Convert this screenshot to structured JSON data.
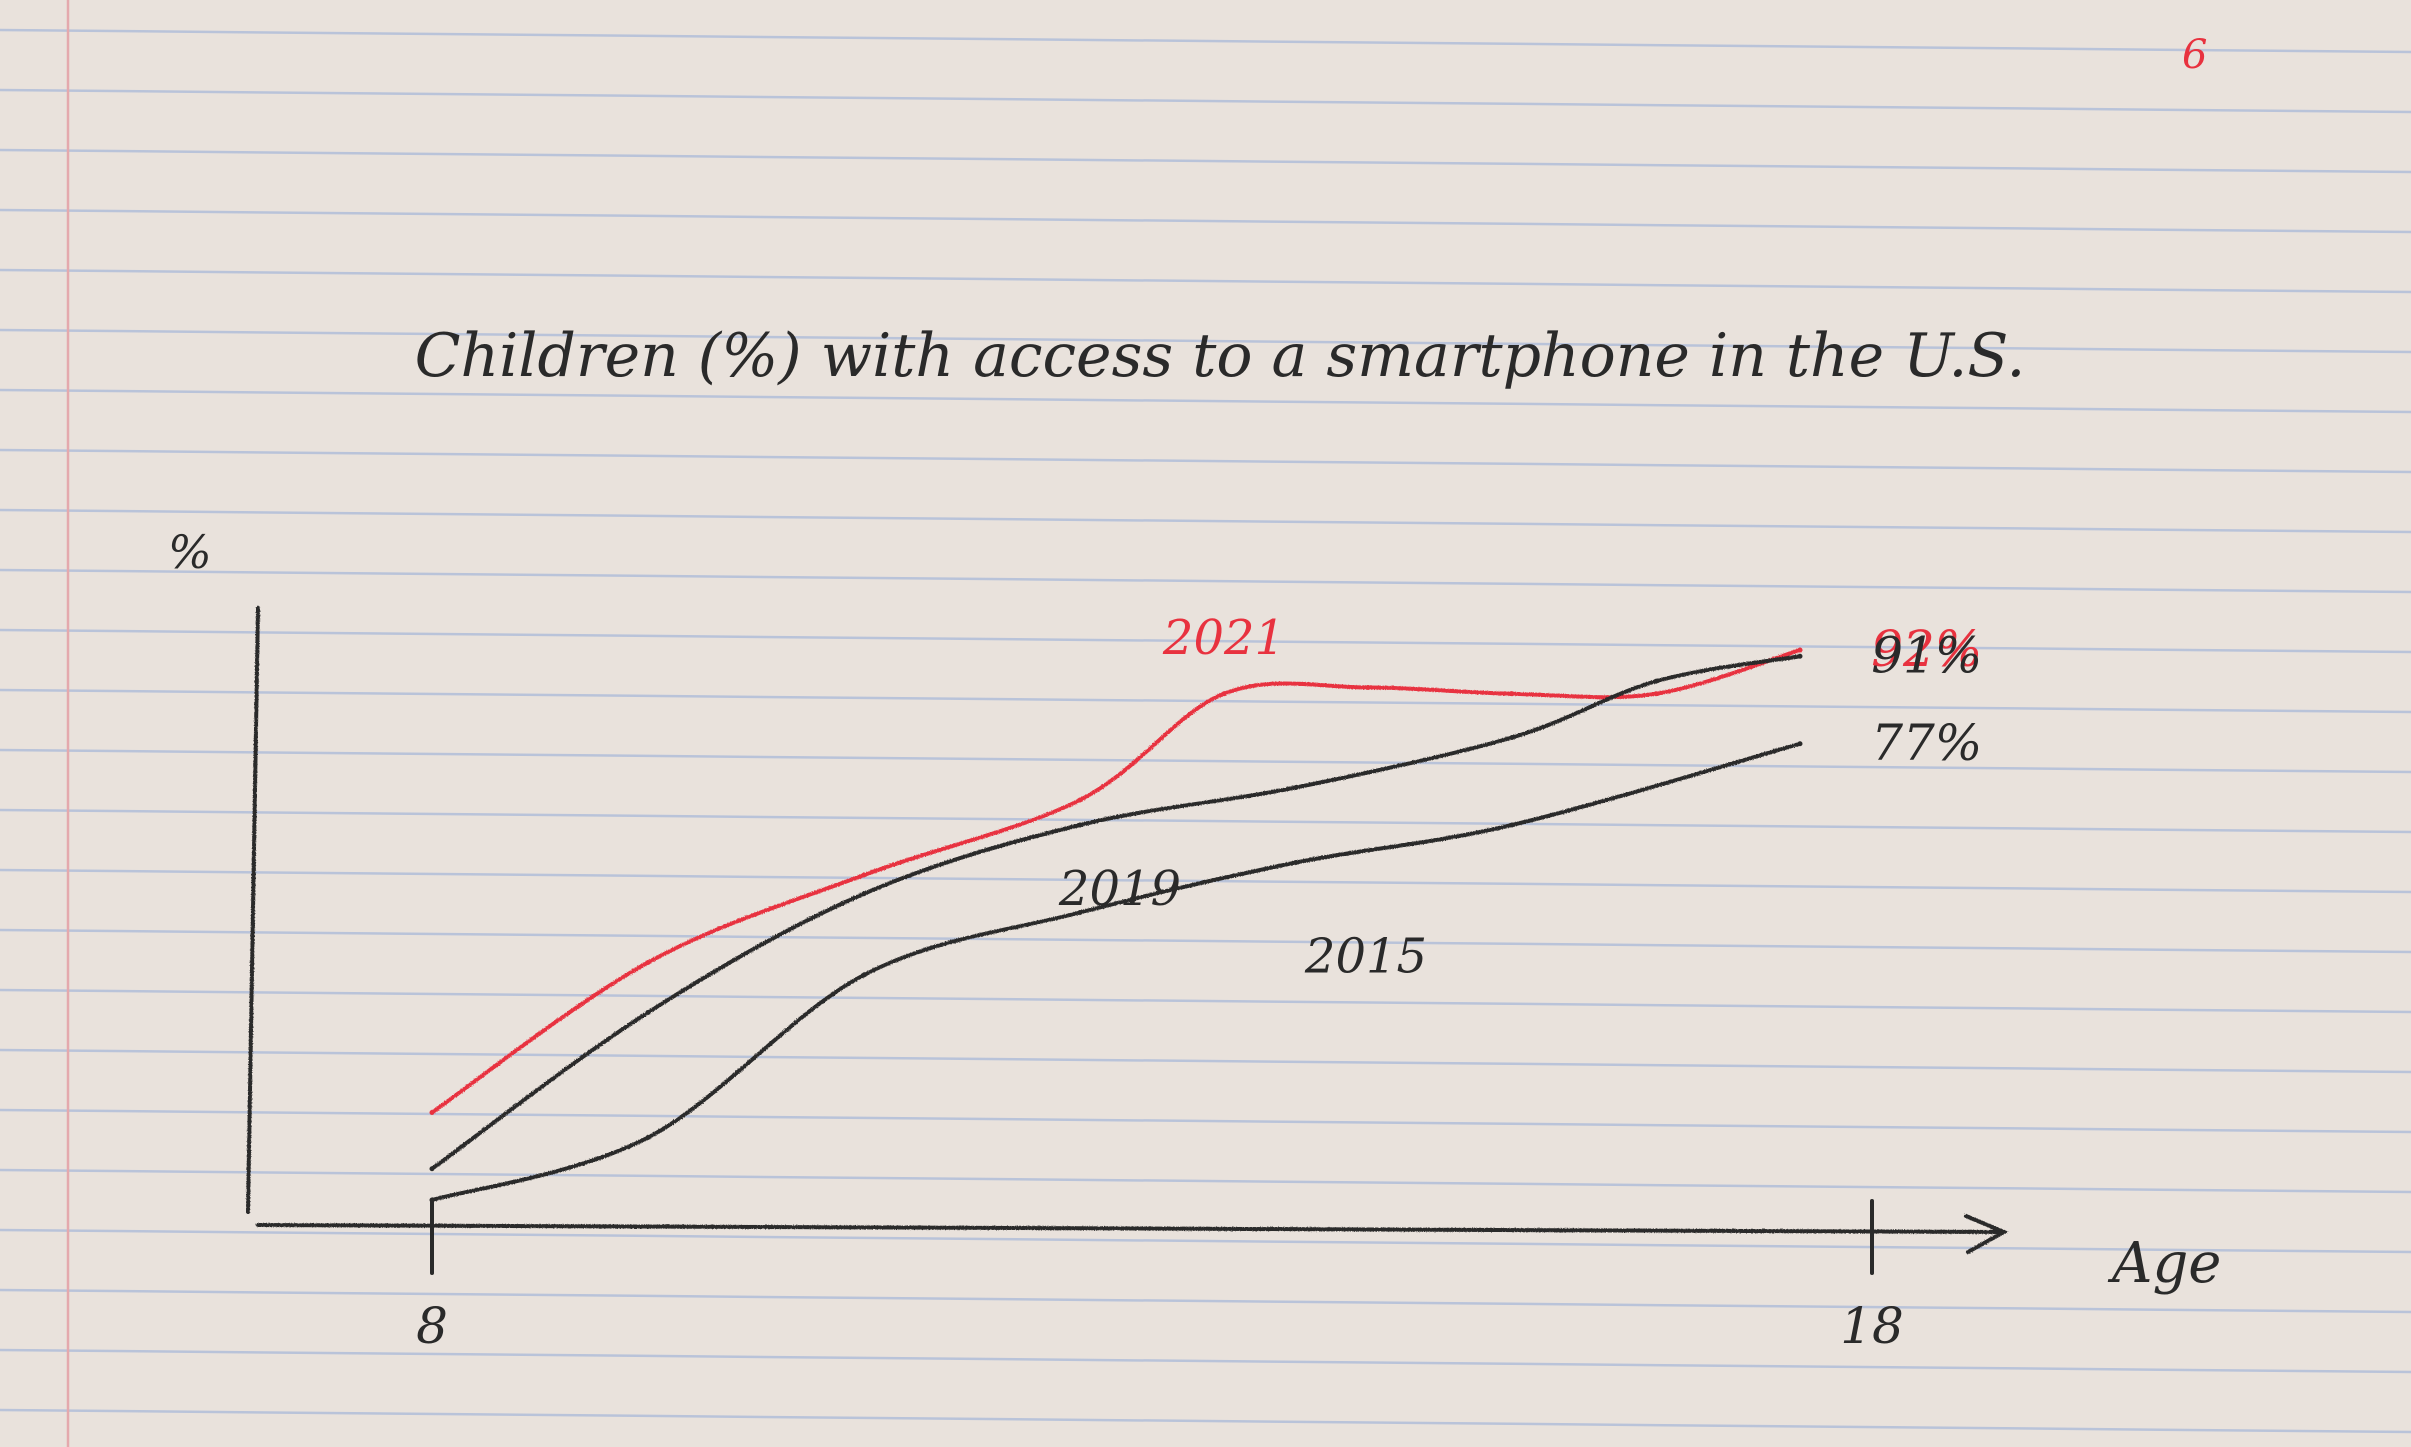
{
  "page_number": "6",
  "colors": {
    "paper": "#e9e2dc",
    "rule_line": "#a9b9d9",
    "margin_line": "#e4a9ad",
    "ink": "#2a2a2a",
    "red_ink": "#e8323f"
  },
  "chart_data": {
    "type": "line",
    "title": "Children (%) with access to a smartphone in the U.S.",
    "ylabel": "%",
    "xlabel": "Age",
    "xlim": [
      6.5,
      20
    ],
    "ylim": [
      0,
      100
    ],
    "x_ticks": [
      {
        "value": 8,
        "label": "8"
      },
      {
        "value": 18,
        "label": "18"
      }
    ],
    "grid": false,
    "series": [
      {
        "name": "2021",
        "color": "#e8323f",
        "x": [
          8,
          9.5,
          11,
          12.5,
          13.5,
          14.5,
          15.5,
          16.5,
          17.5
        ],
        "y": [
          18,
          42,
          56,
          68,
          85,
          86,
          85,
          85,
          92
        ],
        "end_label": "92%"
      },
      {
        "name": "2019",
        "color": "#2a2a2a",
        "x": [
          8,
          9.5,
          11,
          12.5,
          14,
          15.5,
          16.5,
          17.5
        ],
        "y": [
          9,
          34,
          53,
          64,
          70,
          78,
          87,
          91
        ],
        "end_label": "91%"
      },
      {
        "name": "2015",
        "color": "#2a2a2a",
        "x": [
          8,
          9.5,
          11,
          12.5,
          14,
          15.5,
          17.5
        ],
        "y": [
          4,
          14,
          40,
          50,
          58,
          64,
          77
        ],
        "end_label": "77%"
      }
    ]
  }
}
